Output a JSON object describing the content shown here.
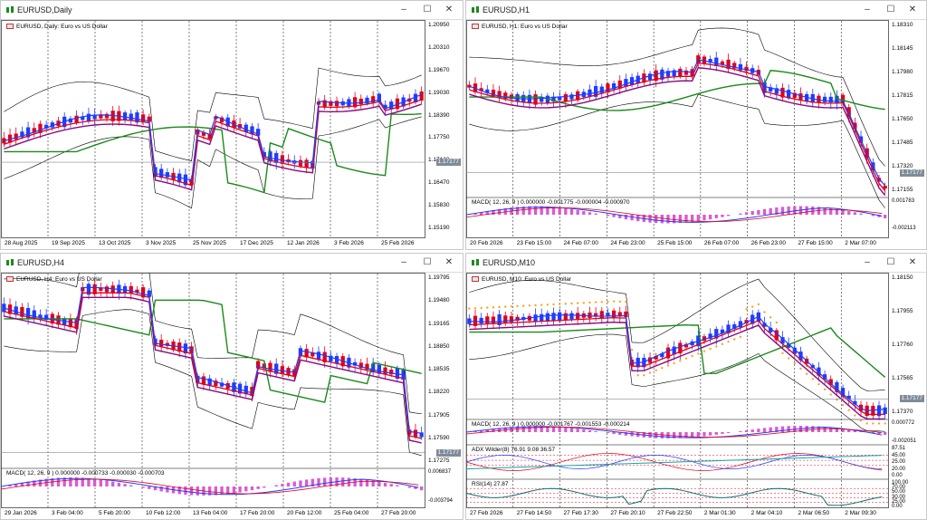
{
  "windows": [
    {
      "id": "daily",
      "title": "EURUSD,Daily",
      "symbol_label": "EURUSD, Daily: Euro vs US Dollar",
      "controls": [
        "–",
        "☐",
        "✕"
      ],
      "prices": [
        "1.20950",
        "1.20310",
        "1.19670",
        "1.19030",
        "1.18390",
        "1.17750",
        "1.17120",
        "1.16470",
        "1.15830",
        "1.15190"
      ],
      "current_price": "1.17177",
      "dates": [
        "28 Aug 2025",
        "19 Sep 2025",
        "13 Oct 2025",
        "3 Nov 2025",
        "25 Nov 2025",
        "17 Dec 2025",
        "12 Jan 2026",
        "3 Feb 2026",
        "25 Feb 2026"
      ],
      "indicators": []
    },
    {
      "id": "h1",
      "title": "EURUSD,H1",
      "symbol_label": "EURUSD, H1: Euro vs US Dollar",
      "controls": [
        "–",
        "☐",
        "✕"
      ],
      "prices": [
        "1.18310",
        "1.18145",
        "1.17980",
        "1.17815",
        "1.17650",
        "1.17485",
        "1.17320",
        "1.17155"
      ],
      "current_price": "1.17177",
      "dates": [
        "20 Feb 2026",
        "23 Feb 15:00",
        "24 Feb 07:00",
        "24 Feb 23:00",
        "25 Feb 15:00",
        "26 Feb 07:00",
        "26 Feb 23:00",
        "27 Feb 15:00",
        "2 Mar 07:00"
      ],
      "indicators": [
        {
          "label": "MACD( 12, 26, 9 ) 0.000000 -0.001775 -0.000004 -0.000970",
          "scale": [
            "0.001783",
            "-0.002113"
          ]
        }
      ]
    },
    {
      "id": "h4",
      "title": "EURUSD,H4",
      "symbol_label": "EURUSD, H4: Euro vs US Dollar",
      "controls": [
        "–",
        "☐",
        "✕"
      ],
      "prices": [
        "1.19795",
        "1.19480",
        "1.19165",
        "1.18850",
        "1.18535",
        "1.18220",
        "1.17905",
        "1.17590",
        "1.17275"
      ],
      "current_price": "1.17177",
      "dates": [
        "29 Jan 2026",
        "3 Feb 04:00",
        "5 Feb 20:00",
        "10 Feb 12:00",
        "13 Feb 04:00",
        "17 Feb 20:00",
        "20 Feb 12:00",
        "25 Feb 04:00",
        "27 Feb 20:00"
      ],
      "indicators": [
        {
          "label": "MACD( 12, 26, 9 ) 0.000000 -0.000733 -0.000030 -0.000703",
          "scale": [
            "0.006837",
            "-0.003794"
          ]
        }
      ]
    },
    {
      "id": "m10",
      "title": "EURUSD,M10",
      "symbol_label": "EURUSD, M10: Euro vs US Dollar",
      "controls": [
        "–",
        "☐",
        "✕"
      ],
      "prices": [
        "1.18150",
        "1.17955",
        "1.17760",
        "1.17565",
        "1.17370"
      ],
      "current_price": "1.17177",
      "dates": [
        "27 Feb 2026",
        "27 Feb 14:50",
        "27 Feb 17:30",
        "27 Feb 20:10",
        "27 Feb 22:50",
        "2 Mar 01:30",
        "2 Mar 04:10",
        "2 Mar 06:50",
        "2 Mar 09:30"
      ],
      "indicators": [
        {
          "label": "MACD( 12, 26, 9 ) 0.000000 -0.001767 -0.001553 -0.000214",
          "scale": [
            "0.000772",
            "-0.002051"
          ]
        },
        {
          "label": "ADX Wilder(8) 76.91 9.08 36.57",
          "scale": [
            "87.51",
            "45.00",
            "25.00",
            "20.00",
            "0.00"
          ]
        },
        {
          "label": "RSI(14) 27.87",
          "scale": [
            "100.00",
            "70.00",
            "50.00",
            "30.00",
            "25.00",
            "0.00"
          ]
        }
      ]
    }
  ],
  "colors": {
    "bull_candle": "#1f3cff",
    "bear_candle": "#e0001b",
    "ma_fast": "#1f3cff",
    "ma_mid": "#e0001b",
    "ma_slow": "#8b0a7d",
    "ma_long": "#1a8a1a",
    "bands": "#000000",
    "sar": "#f5a623",
    "macd_hist": "#d85ad2",
    "grid": "#000000"
  }
}
